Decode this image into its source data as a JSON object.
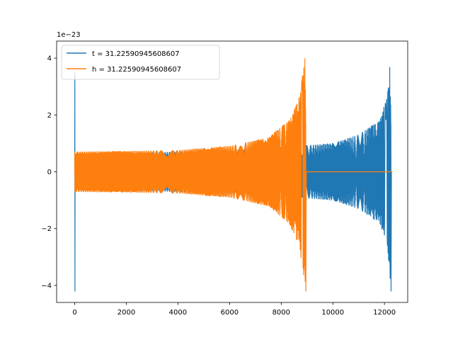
{
  "chart_data": {
    "type": "line",
    "title": "",
    "xlabel": "",
    "ylabel": "",
    "y_offset_label": "1e−23",
    "xlim": [
      -700,
      12900
    ],
    "ylim": [
      -4.6,
      4.6
    ],
    "xticks": [
      0,
      2000,
      4000,
      6000,
      8000,
      10000,
      12000
    ],
    "xtick_labels": [
      "0",
      "2000",
      "4000",
      "6000",
      "8000",
      "10000",
      "12000"
    ],
    "yticks": [
      -4,
      -2,
      0,
      2,
      4
    ],
    "ytick_labels": [
      "−4",
      "−2",
      "0",
      "2",
      "4"
    ],
    "grid": false,
    "legend_position": "top-left",
    "series": [
      {
        "name": "t = 31.22590945608607",
        "color": "#1f77b4",
        "shape": "chirp",
        "x_start": 0,
        "x_merger": 12250,
        "x_end": 12300,
        "envelope": [
          [
            0,
            0.6
          ],
          [
            2000,
            0.65
          ],
          [
            4000,
            0.7
          ],
          [
            6000,
            0.75
          ],
          [
            8000,
            0.85
          ],
          [
            10000,
            1.0
          ],
          [
            11000,
            1.3
          ],
          [
            11800,
            1.8
          ],
          [
            12100,
            2.6
          ],
          [
            12250,
            4.2
          ]
        ],
        "start_spike": [
          3.5,
          -4.2
        ]
      },
      {
        "name": "h = 31.22590945608607",
        "color": "#ff7f0e",
        "shape": "chirp",
        "x_start": 0,
        "x_merger": 8950,
        "x_end": 12300,
        "envelope": [
          [
            0,
            0.7
          ],
          [
            2000,
            0.72
          ],
          [
            4000,
            0.75
          ],
          [
            6000,
            0.9
          ],
          [
            7500,
            1.2
          ],
          [
            8300,
            1.8
          ],
          [
            8700,
            2.6
          ],
          [
            8950,
            4.2
          ]
        ],
        "start_spike": [
          0.7,
          -0.7
        ]
      }
    ]
  }
}
